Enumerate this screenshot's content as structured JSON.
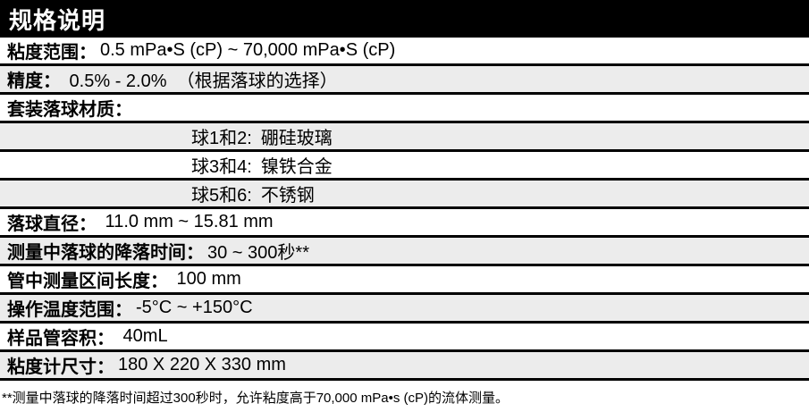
{
  "header": {
    "title": "规格说明"
  },
  "table": {
    "rows": [
      {
        "label": "粘度范围：",
        "value": "0.5 mPa•S (cP) ~ 70,000 mPa•S (cP)",
        "indent": false
      },
      {
        "label": "精度：",
        "value": " 0.5% - 2.0%  （根据落球的选择）",
        "indent": false
      },
      {
        "label": "套装落球材质：",
        "value": "",
        "indent": false
      },
      {
        "label": "球1和2:",
        "value": "硼硅玻璃",
        "indent": true
      },
      {
        "label": "球3和4:",
        "value": "镍铁合金",
        "indent": true
      },
      {
        "label": "球5和6:",
        "value": "不锈钢",
        "indent": true
      },
      {
        "label": "落球直径：",
        "value": " 11.0 mm ~ 15.81 mm",
        "indent": false
      },
      {
        "label": "测量中落球的降落时间：",
        "value": "30 ~ 300秒**",
        "indent": false
      },
      {
        "label": "管中测量区间长度：",
        "value": " 100 mm",
        "indent": false
      },
      {
        "label": "操作温度范围：",
        "value": "-5°C ~ +150°C",
        "indent": false
      },
      {
        "label": "样品管容积：",
        "value": " 40mL",
        "indent": false
      },
      {
        "label": "粘度计尺寸：",
        "value": "180 X 220 X 330 mm",
        "indent": false
      }
    ]
  },
  "footnote": "**测量中落球的降落时间超过300秒时，允许粘度高于70,000 mPa•s (cP)的流体测量。",
  "colors": {
    "header_bg": "#000000",
    "header_text": "#ffffff",
    "row_alt_bg": "#ececec",
    "separator": "#000000"
  }
}
